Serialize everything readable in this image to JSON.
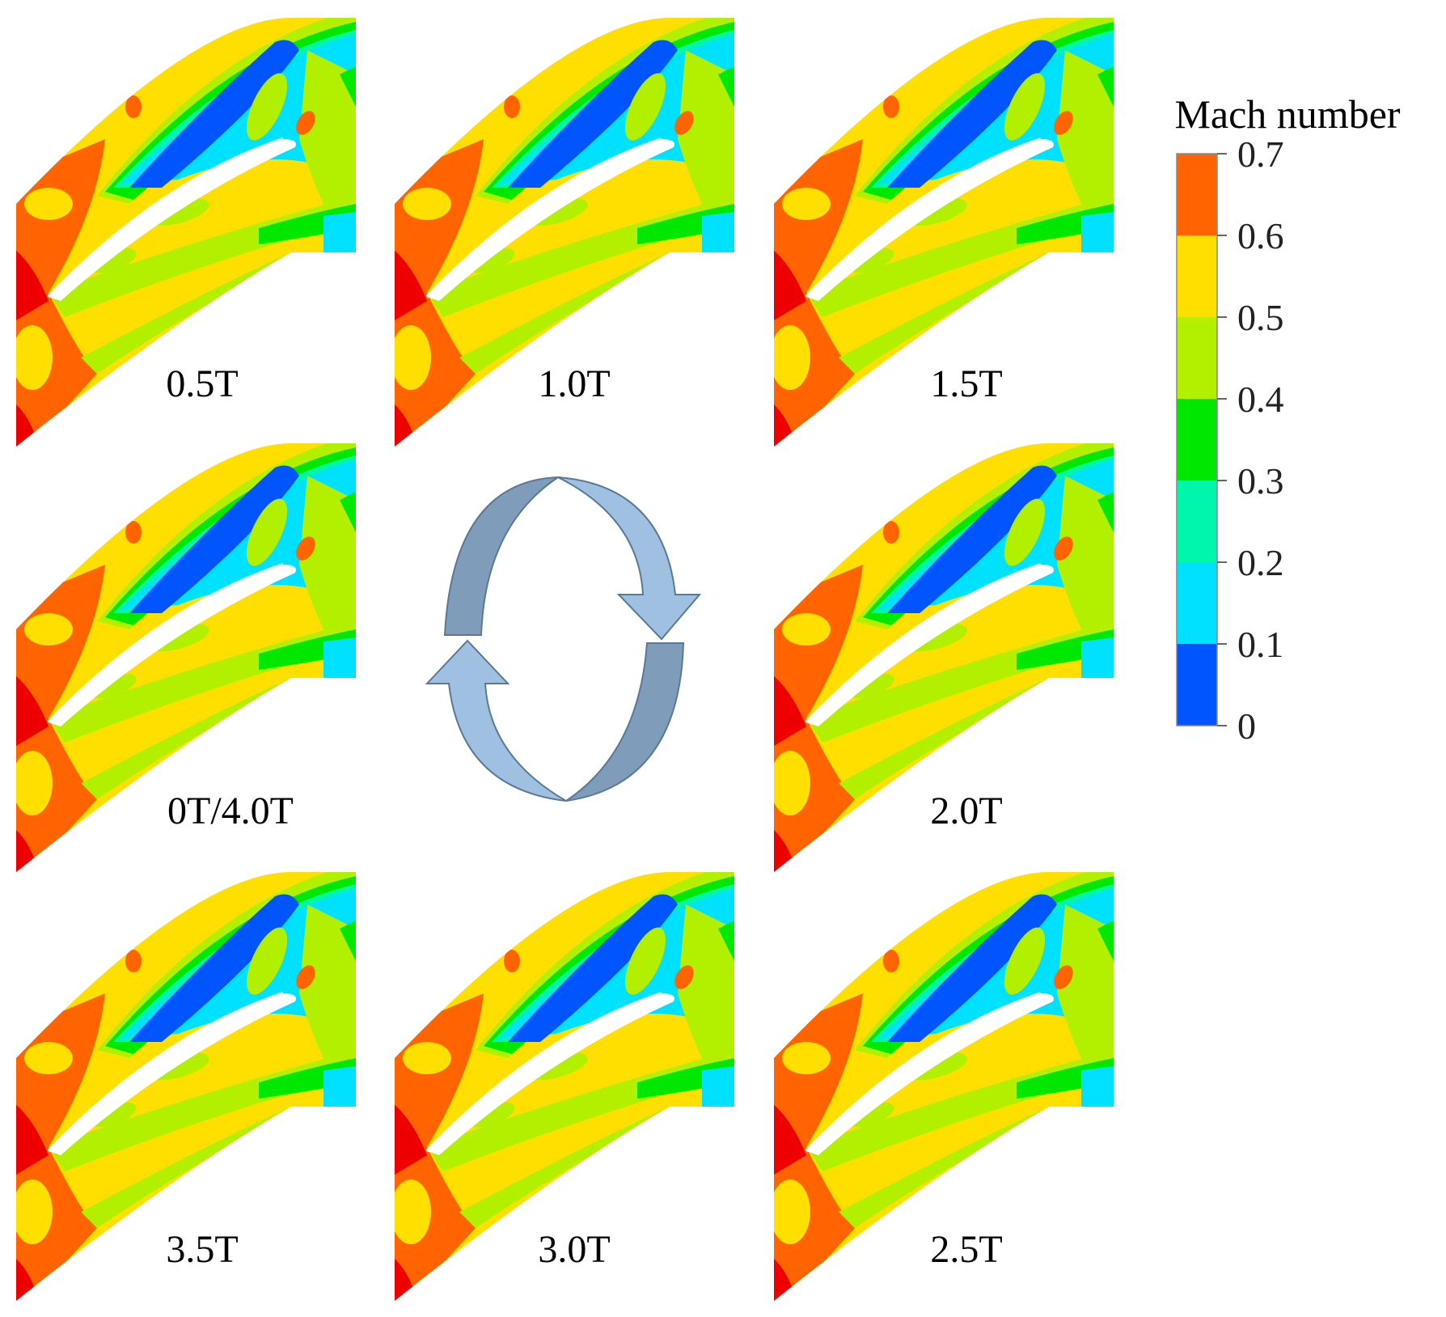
{
  "legend": {
    "title": "Mach number",
    "bands": [
      {
        "from": 0.6,
        "to": 0.7,
        "color": "#ff6400"
      },
      {
        "from": 0.5,
        "to": 0.6,
        "color": "#ffdf00"
      },
      {
        "from": 0.4,
        "to": 0.5,
        "color": "#b3f000"
      },
      {
        "from": 0.3,
        "to": 0.4,
        "color": "#00e800"
      },
      {
        "from": 0.2,
        "to": 0.3,
        "color": "#00f6aa"
      },
      {
        "from": 0.1,
        "to": 0.2,
        "color": "#00e0ff"
      },
      {
        "from": 0.0,
        "to": 0.1,
        "color": "#0055ff"
      }
    ],
    "ticks": [
      "0.7",
      "0.6",
      "0.5",
      "0.4",
      "0.3",
      "0.2",
      "0.1",
      "0"
    ]
  },
  "panels": [
    {
      "label": "0.5T"
    },
    {
      "label": "1.0T"
    },
    {
      "label": "1.5T"
    },
    {
      "label": "0T/4.0T"
    },
    {
      "label": "2.0T"
    },
    {
      "label": "3.5T"
    },
    {
      "label": "3.0T"
    },
    {
      "label": "2.5T"
    }
  ],
  "colors": {
    "red": "#ee0000",
    "orange": "#ff6400",
    "yellow": "#ffdf00",
    "lime": "#b3f000",
    "green": "#00e800",
    "teal": "#00f6aa",
    "cyan": "#00e0ff",
    "blue": "#0055ff",
    "arrow_light": "#a0c0e2",
    "arrow_dark": "#7f9dba",
    "arrow_stroke": "#5a7898"
  }
}
